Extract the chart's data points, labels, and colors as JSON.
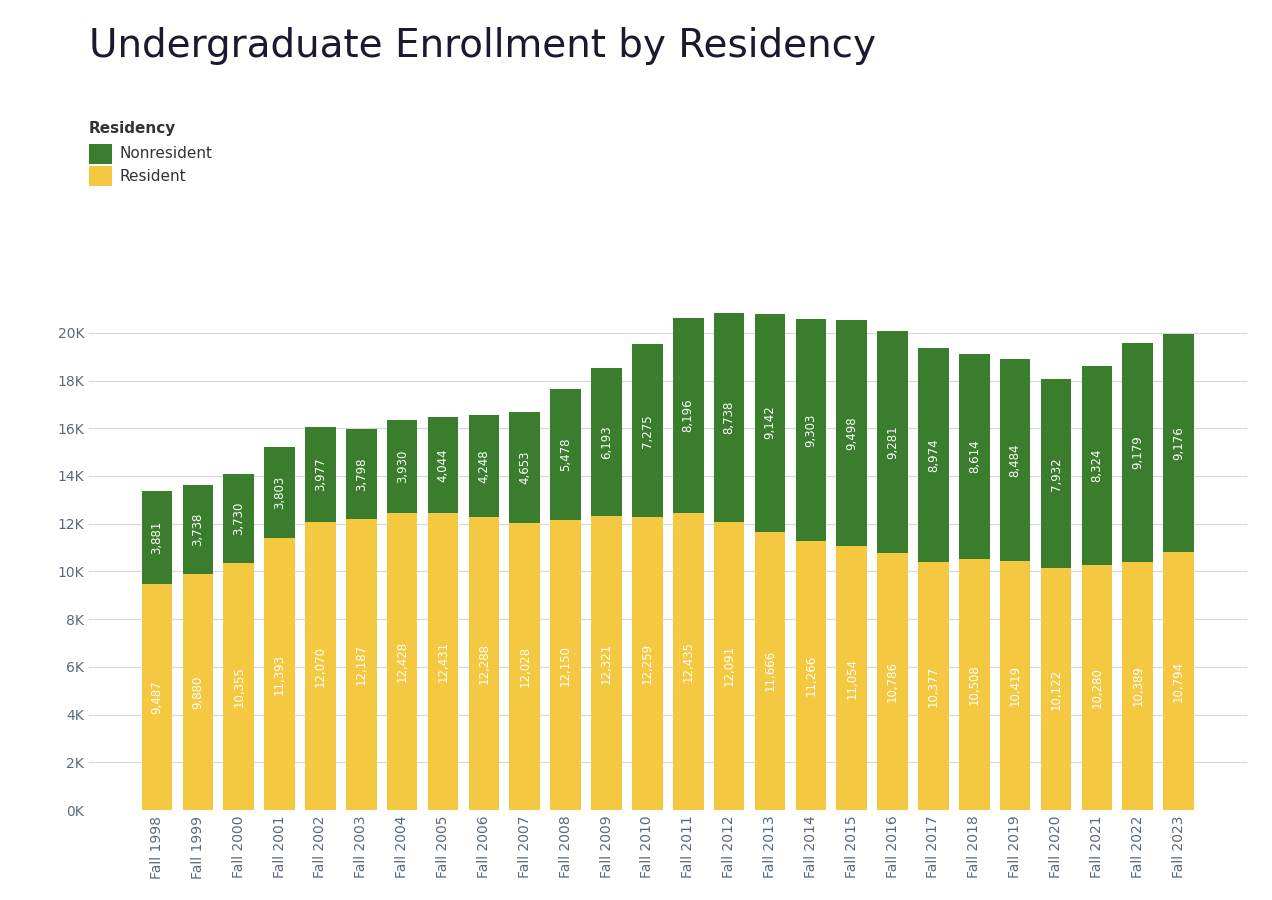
{
  "years": [
    "Fall 1998",
    "Fall 1999",
    "Fall 2000",
    "Fall 2001",
    "Fall 2002",
    "Fall 2003",
    "Fall 2004",
    "Fall 2005",
    "Fall 2006",
    "Fall 2007",
    "Fall 2008",
    "Fall 2009",
    "Fall 2010",
    "Fall 2011",
    "Fall 2012",
    "Fall 2013",
    "Fall 2014",
    "Fall 2015",
    "Fall 2016",
    "Fall 2017",
    "Fall 2018",
    "Fall 2019",
    "Fall 2020",
    "Fall 2021",
    "Fall 2022",
    "Fall 2023"
  ],
  "resident": [
    9487,
    9880,
    10355,
    11393,
    12070,
    12187,
    12428,
    12431,
    12288,
    12028,
    12150,
    12321,
    12259,
    12435,
    12091,
    11666,
    11266,
    11054,
    10786,
    10377,
    10508,
    10419,
    10122,
    10280,
    10389,
    10794
  ],
  "nonresident": [
    3881,
    3738,
    3730,
    3803,
    3977,
    3798,
    3930,
    4044,
    4248,
    4653,
    5478,
    6193,
    7275,
    8196,
    8738,
    9142,
    9303,
    9498,
    9281,
    8974,
    8614,
    8484,
    7932,
    8324,
    9179,
    9176
  ],
  "resident_color": "#F5C842",
  "nonresident_color": "#3A7D2C",
  "title": "Undergraduate Enrollment by Residency",
  "legend_title": "Residency",
  "legend_nonresident": "Nonresident",
  "legend_resident": "Resident",
  "background_color": "#FFFFFF",
  "title_fontsize": 28,
  "label_fontsize": 8.5,
  "tick_fontsize": 10,
  "legend_fontsize": 11,
  "title_color": "#1a1a2e",
  "tick_color": "#5a6a7a",
  "grid_color": "#D8D8D8"
}
